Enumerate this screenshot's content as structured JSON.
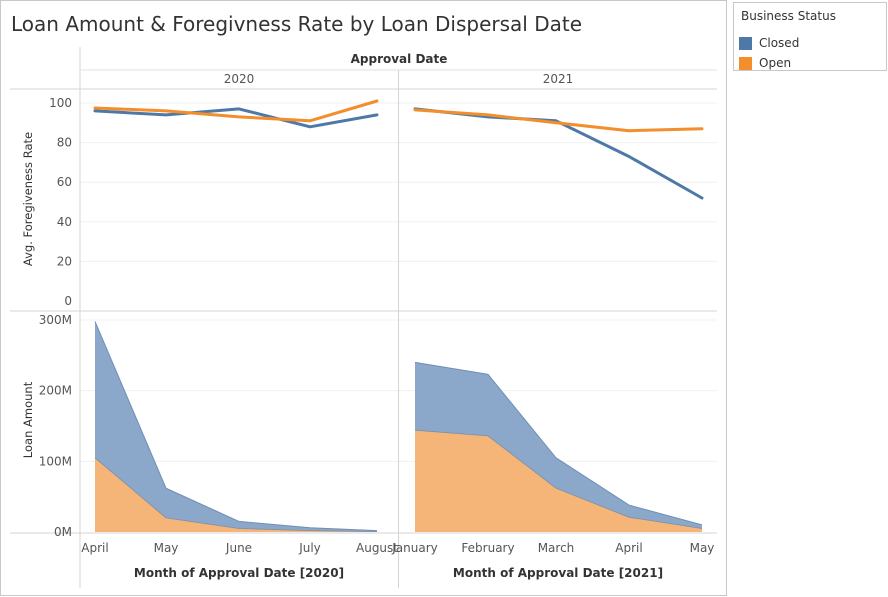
{
  "title": "Loan Amount & Foregivness Rate by Loan Dispersal Date",
  "colors": {
    "closed": "#4e79a7",
    "open": "#f28e2b",
    "closed_fill": "#8ba7c9",
    "open_fill": "#f5b478"
  },
  "legend": {
    "title": "Business Status",
    "items": [
      "Closed",
      "Open"
    ]
  },
  "chart_data": {
    "type": "line",
    "column_header_title": "Approval Date",
    "panels": [
      "2020",
      "2021"
    ],
    "x_titles": [
      "Month of Approval Date [2020]",
      "Month of Approval Date [2021]"
    ],
    "categories": [
      [
        "April",
        "May",
        "June",
        "July",
        "August"
      ],
      [
        "January",
        "February",
        "March",
        "April",
        "May"
      ]
    ],
    "rate": {
      "ylabel": "Avg. Foregiveness Rate",
      "ylim": [
        0,
        100
      ],
      "yticks": [
        "0",
        "20",
        "40",
        "60",
        "80",
        "100"
      ],
      "series": [
        {
          "name": "Closed",
          "values": [
            [
              96,
              94,
              97,
              88,
              94
            ],
            [
              97,
              93,
              91,
              73,
              52
            ]
          ]
        },
        {
          "name": "Open",
          "values": [
            [
              97.5,
              96,
              93,
              91,
              101
            ],
            [
              96.5,
              94,
              90,
              86,
              87
            ]
          ]
        }
      ]
    },
    "amount": {
      "type": "area",
      "stacked": true,
      "ylabel": "Loan Amount",
      "ylim": [
        0,
        300000000
      ],
      "yticks": [
        "0M",
        "100M",
        "200M",
        "300M"
      ],
      "series": [
        {
          "name": "Open",
          "values": [
            [
              105000000,
              20000000,
              5000000,
              2000000,
              500000
            ],
            [
              144000000,
              136000000,
              62000000,
              21000000,
              5000000
            ]
          ]
        },
        {
          "name": "Closed",
          "values": [
            [
              193000000,
              42000000,
              10000000,
              4000000,
              1500000
            ],
            [
              96000000,
              87000000,
              43000000,
              17000000,
              5000000
            ]
          ]
        }
      ]
    }
  }
}
